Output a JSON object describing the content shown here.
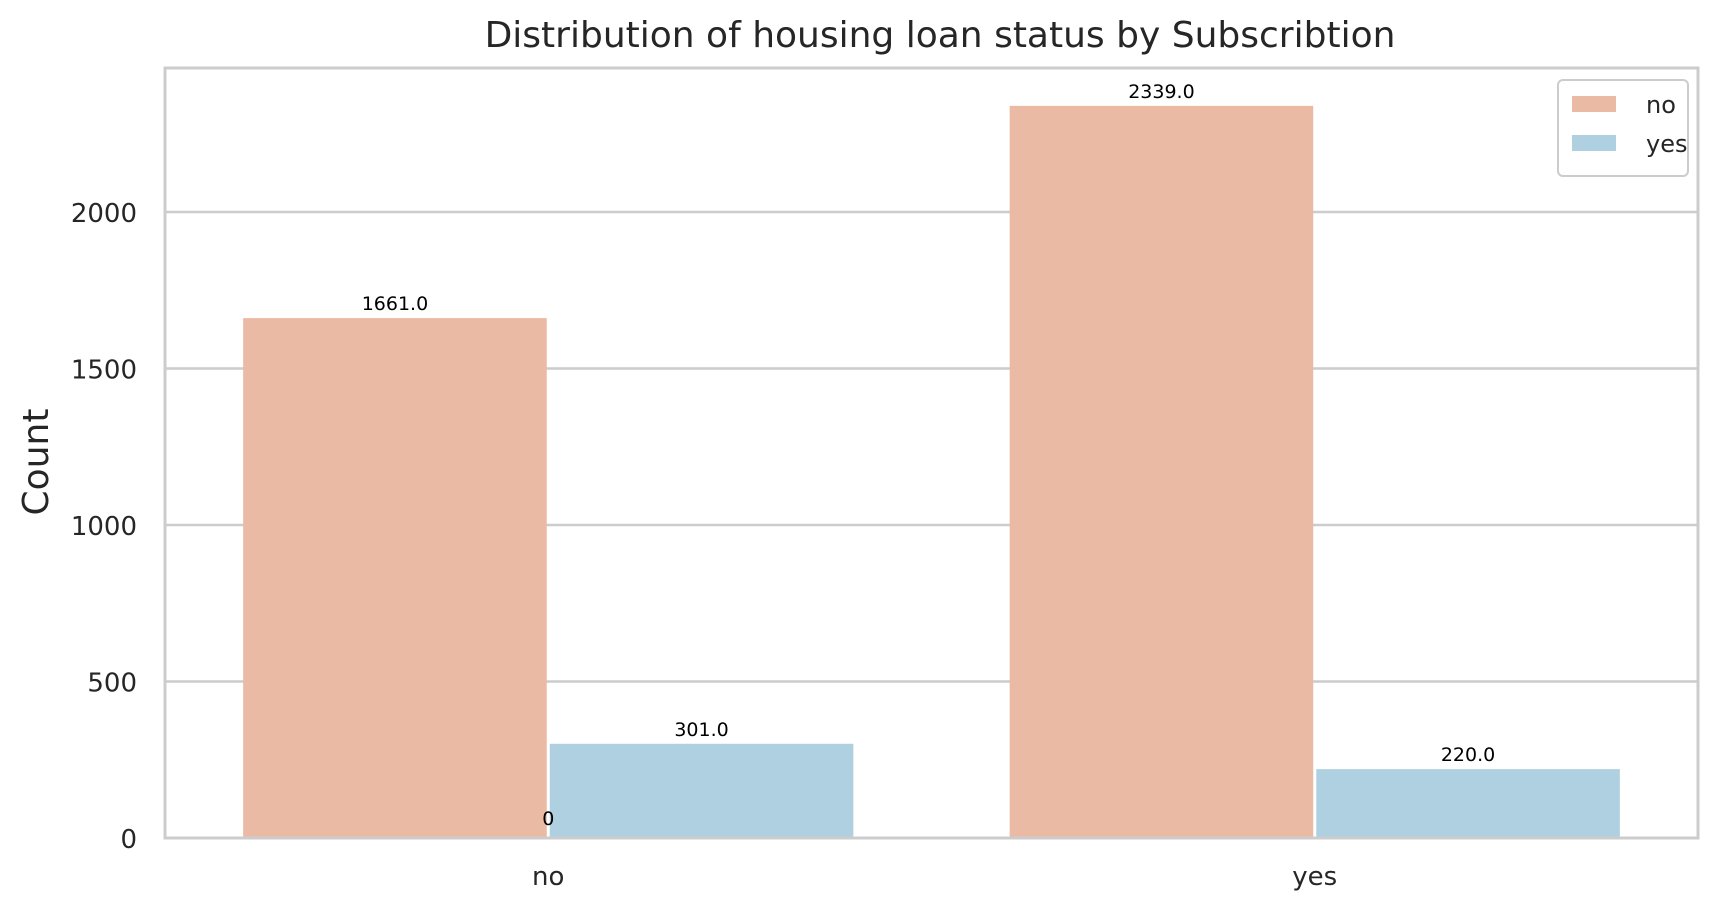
{
  "chart_data": {
    "type": "bar",
    "title": "Distribution of housing loan status by Subscribtion",
    "xlabel": "",
    "ylabel": "Count",
    "categories": [
      "no",
      "yes"
    ],
    "series": [
      {
        "name": "no",
        "values": [
          1661.0,
          2339.0
        ],
        "value_labels": [
          "1661.0",
          "2339.0"
        ],
        "color": "#EABAA4"
      },
      {
        "name": "yes",
        "values": [
          301.0,
          220.0
        ],
        "value_labels": [
          "301.0",
          "220.0"
        ],
        "color": "#AED0E1"
      }
    ],
    "extra_annotations": [
      {
        "text": "0",
        "x": "no",
        "y": 0
      }
    ],
    "ylim": [
      0,
      2460
    ],
    "yticks": [
      0,
      500,
      1000,
      1500,
      2000
    ],
    "grid": true,
    "legend": "top-right"
  },
  "colors": {
    "grid": "#CCCCCC",
    "frame": "#CCCCCC",
    "text": "#262626"
  }
}
